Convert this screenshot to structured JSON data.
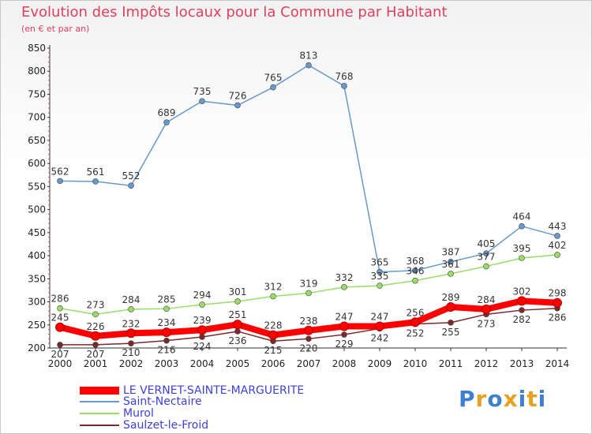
{
  "title": "Evolution des Impôts locaux pour la Commune par Habitant",
  "subtitle": "(en € et par an)",
  "logo": {
    "text": "Proxiti",
    "colors": [
      "#3f7fd0",
      "#e8a020",
      "#3f7fd0",
      "#e8a020",
      "#3f7fd0",
      "#e8a020",
      "#3f7fd0"
    ]
  },
  "chart_data": {
    "type": "line",
    "title": "Evolution des Impôts locaux pour la Commune par Habitant",
    "subtitle": "(en € et par an)",
    "x": [
      "2000",
      "2001",
      "2002",
      "2003",
      "2004",
      "2005",
      "2006",
      "2007",
      "2008",
      "2009",
      "2010",
      "2011",
      "2012",
      "2013",
      "2014"
    ],
    "ylim": [
      200,
      850
    ],
    "yticks": [
      200,
      250,
      300,
      350,
      400,
      450,
      500,
      550,
      600,
      650,
      700,
      750,
      800,
      850
    ],
    "grid": false,
    "legend_position": "bottom-left",
    "series": [
      {
        "name": "LE VERNET-SAINTE-MARGUERITE",
        "color": "#ff0000",
        "values": [
          245,
          226,
          232,
          234,
          239,
          251,
          228,
          238,
          247,
          247,
          256,
          289,
          284,
          302,
          298
        ],
        "labels": [
          "245",
          "226",
          "232",
          "234",
          "239",
          "251",
          "228",
          "238",
          "247",
          "247",
          "256",
          "289",
          "284",
          "302",
          "298"
        ]
      },
      {
        "name": "Saint-Nectaire",
        "color": "#6699cc",
        "values": [
          562,
          561,
          552,
          689,
          735,
          726,
          765,
          813,
          768,
          365,
          368,
          387,
          405,
          464,
          443
        ],
        "labels": [
          "562",
          "561",
          "552",
          "689",
          "735",
          "726",
          "765",
          "813",
          "768",
          "365",
          "368",
          "387",
          "405",
          "464",
          "443"
        ]
      },
      {
        "name": "Murol",
        "color": "#99dd66",
        "values": [
          286,
          273,
          284,
          285,
          294,
          301,
          312,
          319,
          332,
          335,
          346,
          361,
          377,
          395,
          402
        ],
        "labels": [
          "286",
          "273",
          "284",
          "285",
          "294",
          "301",
          "312",
          "319",
          "332",
          "335",
          "346",
          "361",
          "377",
          "395",
          "402"
        ]
      },
      {
        "name": "Saulzet-le-Froid",
        "color": "#7a2a2a",
        "values": [
          207,
          207,
          210,
          216,
          224,
          236,
          215,
          220,
          229,
          242,
          252,
          255,
          273,
          282,
          286
        ],
        "labels": [
          "207",
          "207",
          "210",
          "216",
          "224",
          "236",
          "215",
          "220",
          "229",
          "242",
          "252",
          "255",
          "273",
          "282",
          "286"
        ]
      }
    ]
  }
}
